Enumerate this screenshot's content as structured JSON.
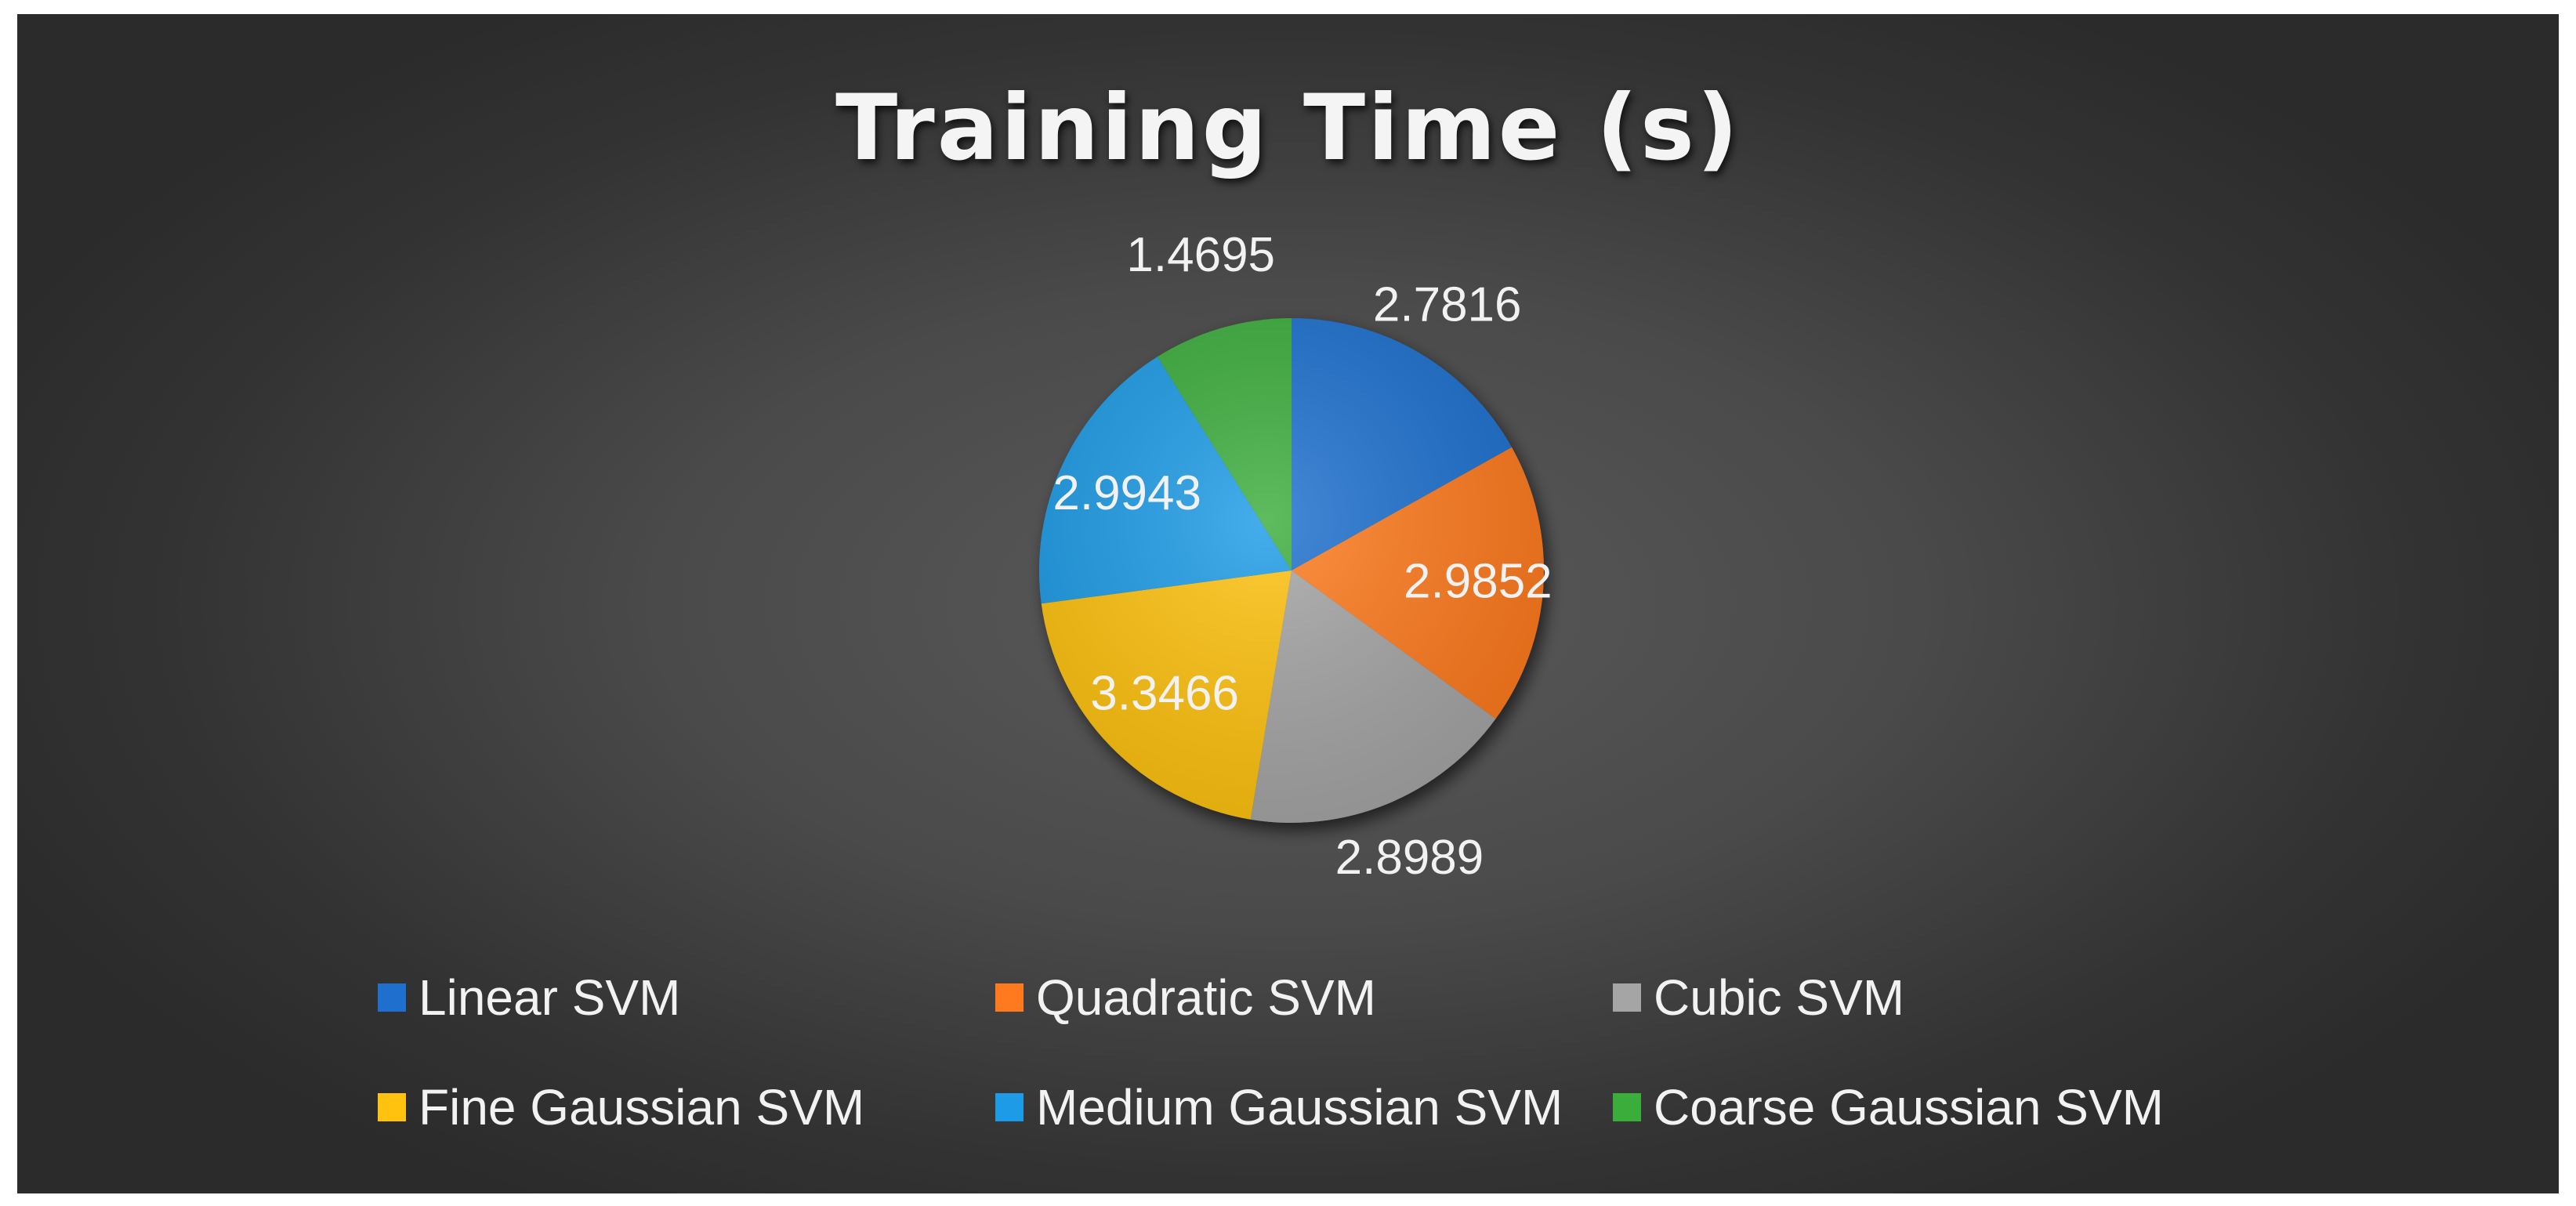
{
  "chart_data": {
    "type": "pie",
    "title": "Training Time (s)",
    "categories": [
      "Linear SVM",
      "Quadratic SVM",
      "Cubic SVM",
      "Fine Gaussian SVM",
      "Medium Gaussian SVM",
      "Coarse Gaussian SVM"
    ],
    "values": [
      2.7816,
      2.9852,
      2.8989,
      3.3466,
      2.9943,
      1.4695
    ],
    "data_labels": [
      "2.7816",
      "2.9852",
      "2.8989",
      "3.3466",
      "2.9943",
      "1.4695"
    ],
    "colors": [
      "#1f6fcf",
      "#ff7a1f",
      "#a5a5a5",
      "#ffc20e",
      "#1e9be6",
      "#3aad3a"
    ],
    "legend": "bottom",
    "start_angle": "12 o'clock, clockwise"
  }
}
